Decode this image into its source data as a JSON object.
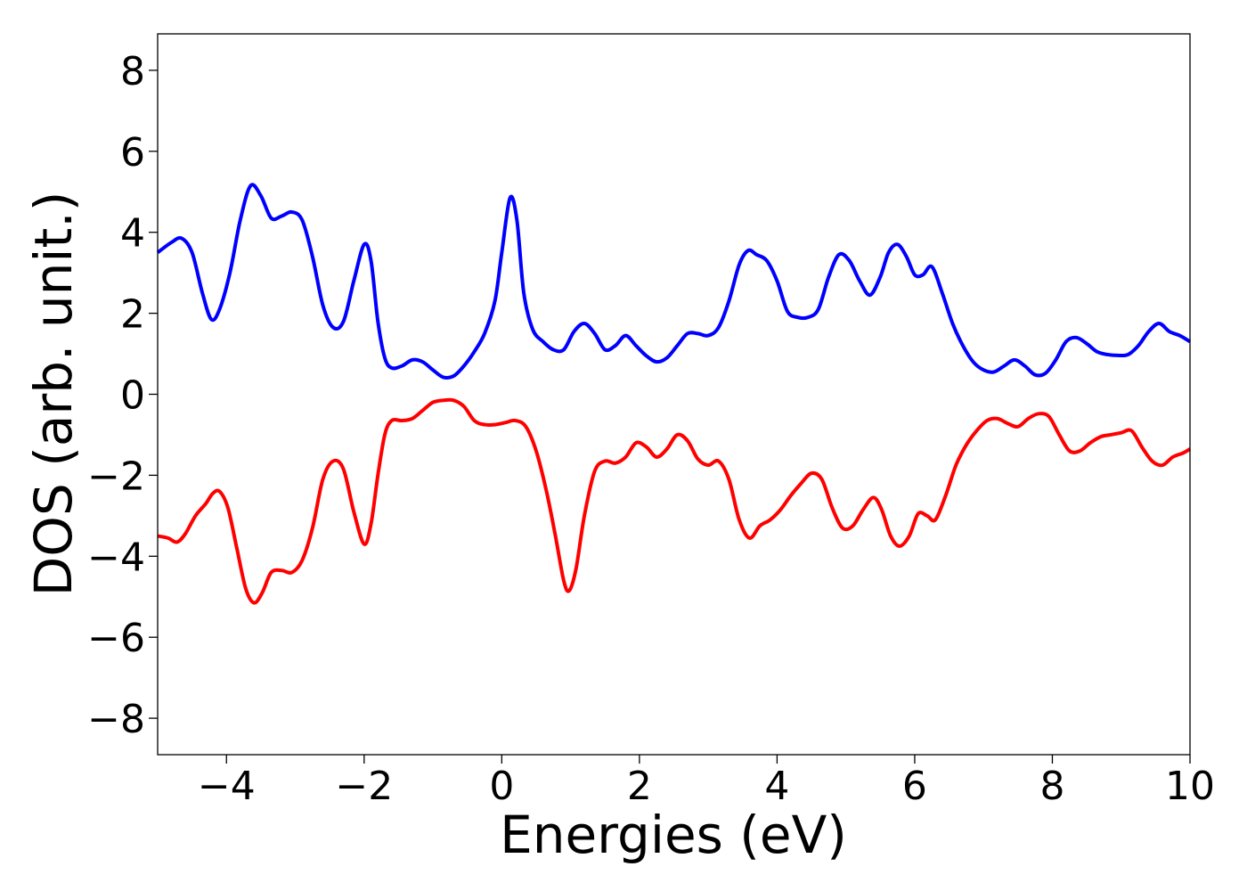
{
  "chart_data": {
    "type": "line",
    "title": "",
    "xlabel": "Energies (eV)",
    "ylabel": "DOS (arb. unit.)",
    "xlim": [
      -5,
      10
    ],
    "ylim": [
      -8.9,
      8.9
    ],
    "grid": false,
    "legend": "none",
    "x_ticks": [
      -4,
      -2,
      0,
      2,
      4,
      6,
      8,
      10
    ],
    "x_tick_labels": [
      "−4",
      "−2",
      "0",
      "2",
      "4",
      "6",
      "8",
      "10"
    ],
    "y_ticks": [
      -8,
      -6,
      -4,
      -2,
      0,
      2,
      4,
      6,
      8
    ],
    "y_tick_labels": [
      "−8",
      "−6",
      "−4",
      "−2",
      "0",
      "2",
      "4",
      "6",
      "8"
    ],
    "series": [
      {
        "color": "#0000ff",
        "points": [
          [
            -5.0,
            3.5
          ],
          [
            -4.8,
            3.75
          ],
          [
            -4.65,
            3.85
          ],
          [
            -4.5,
            3.5
          ],
          [
            -4.35,
            2.5
          ],
          [
            -4.22,
            1.85
          ],
          [
            -4.1,
            2.1
          ],
          [
            -3.95,
            3.0
          ],
          [
            -3.8,
            4.3
          ],
          [
            -3.65,
            5.15
          ],
          [
            -3.5,
            4.9
          ],
          [
            -3.35,
            4.35
          ],
          [
            -3.2,
            4.4
          ],
          [
            -3.05,
            4.5
          ],
          [
            -2.9,
            4.3
          ],
          [
            -2.75,
            3.4
          ],
          [
            -2.6,
            2.2
          ],
          [
            -2.45,
            1.65
          ],
          [
            -2.3,
            1.8
          ],
          [
            -2.15,
            2.8
          ],
          [
            -2.0,
            3.7
          ],
          [
            -1.9,
            3.3
          ],
          [
            -1.8,
            1.8
          ],
          [
            -1.7,
            0.9
          ],
          [
            -1.6,
            0.65
          ],
          [
            -1.45,
            0.7
          ],
          [
            -1.3,
            0.85
          ],
          [
            -1.15,
            0.8
          ],
          [
            -1.0,
            0.6
          ],
          [
            -0.85,
            0.42
          ],
          [
            -0.7,
            0.45
          ],
          [
            -0.55,
            0.7
          ],
          [
            -0.4,
            1.05
          ],
          [
            -0.25,
            1.5
          ],
          [
            -0.1,
            2.3
          ],
          [
            0.0,
            3.5
          ],
          [
            0.12,
            4.85
          ],
          [
            0.22,
            4.3
          ],
          [
            0.32,
            2.5
          ],
          [
            0.45,
            1.6
          ],
          [
            0.6,
            1.3
          ],
          [
            0.75,
            1.1
          ],
          [
            0.9,
            1.1
          ],
          [
            1.05,
            1.55
          ],
          [
            1.2,
            1.75
          ],
          [
            1.35,
            1.5
          ],
          [
            1.5,
            1.1
          ],
          [
            1.65,
            1.2
          ],
          [
            1.8,
            1.45
          ],
          [
            1.95,
            1.2
          ],
          [
            2.1,
            0.95
          ],
          [
            2.25,
            0.8
          ],
          [
            2.4,
            0.9
          ],
          [
            2.55,
            1.2
          ],
          [
            2.7,
            1.5
          ],
          [
            2.85,
            1.5
          ],
          [
            3.0,
            1.45
          ],
          [
            3.15,
            1.65
          ],
          [
            3.3,
            2.3
          ],
          [
            3.45,
            3.2
          ],
          [
            3.58,
            3.55
          ],
          [
            3.7,
            3.45
          ],
          [
            3.85,
            3.3
          ],
          [
            4.0,
            2.8
          ],
          [
            4.15,
            2.05
          ],
          [
            4.3,
            1.9
          ],
          [
            4.45,
            1.9
          ],
          [
            4.6,
            2.1
          ],
          [
            4.75,
            2.9
          ],
          [
            4.9,
            3.45
          ],
          [
            5.05,
            3.3
          ],
          [
            5.2,
            2.8
          ],
          [
            5.35,
            2.45
          ],
          [
            5.5,
            2.9
          ],
          [
            5.62,
            3.5
          ],
          [
            5.75,
            3.7
          ],
          [
            5.88,
            3.4
          ],
          [
            6.0,
            2.95
          ],
          [
            6.12,
            2.95
          ],
          [
            6.25,
            3.15
          ],
          [
            6.4,
            2.5
          ],
          [
            6.55,
            1.75
          ],
          [
            6.7,
            1.2
          ],
          [
            6.85,
            0.8
          ],
          [
            7.0,
            0.6
          ],
          [
            7.15,
            0.55
          ],
          [
            7.3,
            0.7
          ],
          [
            7.45,
            0.85
          ],
          [
            7.6,
            0.7
          ],
          [
            7.75,
            0.48
          ],
          [
            7.9,
            0.52
          ],
          [
            8.05,
            0.85
          ],
          [
            8.2,
            1.3
          ],
          [
            8.35,
            1.4
          ],
          [
            8.5,
            1.25
          ],
          [
            8.65,
            1.05
          ],
          [
            8.8,
            0.98
          ],
          [
            8.95,
            0.96
          ],
          [
            9.1,
            0.98
          ],
          [
            9.25,
            1.2
          ],
          [
            9.4,
            1.55
          ],
          [
            9.55,
            1.75
          ],
          [
            9.7,
            1.55
          ],
          [
            9.85,
            1.45
          ],
          [
            10.0,
            1.3
          ]
        ]
      },
      {
        "color": "#ff0000",
        "points": [
          [
            -5.0,
            -3.5
          ],
          [
            -4.85,
            -3.55
          ],
          [
            -4.72,
            -3.65
          ],
          [
            -4.6,
            -3.45
          ],
          [
            -4.45,
            -3.0
          ],
          [
            -4.3,
            -2.7
          ],
          [
            -4.2,
            -2.45
          ],
          [
            -4.1,
            -2.4
          ],
          [
            -3.98,
            -2.8
          ],
          [
            -3.85,
            -3.8
          ],
          [
            -3.72,
            -4.8
          ],
          [
            -3.6,
            -5.15
          ],
          [
            -3.48,
            -4.9
          ],
          [
            -3.35,
            -4.4
          ],
          [
            -3.2,
            -4.35
          ],
          [
            -3.05,
            -4.4
          ],
          [
            -2.9,
            -4.1
          ],
          [
            -2.75,
            -3.3
          ],
          [
            -2.6,
            -2.1
          ],
          [
            -2.45,
            -1.65
          ],
          [
            -2.3,
            -1.85
          ],
          [
            -2.15,
            -2.9
          ],
          [
            -2.0,
            -3.7
          ],
          [
            -1.9,
            -3.2
          ],
          [
            -1.8,
            -2.0
          ],
          [
            -1.7,
            -1.0
          ],
          [
            -1.6,
            -0.65
          ],
          [
            -1.45,
            -0.65
          ],
          [
            -1.3,
            -0.6
          ],
          [
            -1.15,
            -0.4
          ],
          [
            -1.0,
            -0.2
          ],
          [
            -0.85,
            -0.15
          ],
          [
            -0.7,
            -0.15
          ],
          [
            -0.55,
            -0.3
          ],
          [
            -0.4,
            -0.65
          ],
          [
            -0.25,
            -0.75
          ],
          [
            -0.1,
            -0.75
          ],
          [
            0.05,
            -0.7
          ],
          [
            0.2,
            -0.65
          ],
          [
            0.35,
            -0.8
          ],
          [
            0.5,
            -1.4
          ],
          [
            0.65,
            -2.4
          ],
          [
            0.78,
            -3.5
          ],
          [
            0.9,
            -4.6
          ],
          [
            0.98,
            -4.85
          ],
          [
            1.08,
            -4.3
          ],
          [
            1.2,
            -3.0
          ],
          [
            1.35,
            -1.9
          ],
          [
            1.5,
            -1.65
          ],
          [
            1.65,
            -1.7
          ],
          [
            1.8,
            -1.55
          ],
          [
            1.95,
            -1.2
          ],
          [
            2.1,
            -1.3
          ],
          [
            2.25,
            -1.55
          ],
          [
            2.4,
            -1.35
          ],
          [
            2.55,
            -1.0
          ],
          [
            2.7,
            -1.15
          ],
          [
            2.85,
            -1.6
          ],
          [
            3.0,
            -1.75
          ],
          [
            3.15,
            -1.65
          ],
          [
            3.3,
            -2.1
          ],
          [
            3.45,
            -3.1
          ],
          [
            3.6,
            -3.55
          ],
          [
            3.75,
            -3.25
          ],
          [
            3.9,
            -3.1
          ],
          [
            4.05,
            -2.85
          ],
          [
            4.2,
            -2.5
          ],
          [
            4.35,
            -2.2
          ],
          [
            4.5,
            -1.95
          ],
          [
            4.65,
            -2.1
          ],
          [
            4.8,
            -2.8
          ],
          [
            4.95,
            -3.3
          ],
          [
            5.1,
            -3.25
          ],
          [
            5.25,
            -2.85
          ],
          [
            5.4,
            -2.55
          ],
          [
            5.52,
            -2.85
          ],
          [
            5.65,
            -3.5
          ],
          [
            5.78,
            -3.75
          ],
          [
            5.92,
            -3.5
          ],
          [
            6.05,
            -2.95
          ],
          [
            6.18,
            -3.0
          ],
          [
            6.3,
            -3.1
          ],
          [
            6.45,
            -2.5
          ],
          [
            6.6,
            -1.75
          ],
          [
            6.75,
            -1.25
          ],
          [
            6.9,
            -0.9
          ],
          [
            7.05,
            -0.65
          ],
          [
            7.2,
            -0.6
          ],
          [
            7.35,
            -0.72
          ],
          [
            7.5,
            -0.8
          ],
          [
            7.65,
            -0.6
          ],
          [
            7.8,
            -0.48
          ],
          [
            7.95,
            -0.55
          ],
          [
            8.1,
            -1.0
          ],
          [
            8.25,
            -1.4
          ],
          [
            8.4,
            -1.4
          ],
          [
            8.55,
            -1.2
          ],
          [
            8.7,
            -1.05
          ],
          [
            8.85,
            -1.0
          ],
          [
            9.0,
            -0.95
          ],
          [
            9.15,
            -0.9
          ],
          [
            9.3,
            -1.3
          ],
          [
            9.45,
            -1.65
          ],
          [
            9.6,
            -1.75
          ],
          [
            9.75,
            -1.55
          ],
          [
            9.9,
            -1.45
          ],
          [
            10.0,
            -1.35
          ]
        ]
      }
    ]
  }
}
